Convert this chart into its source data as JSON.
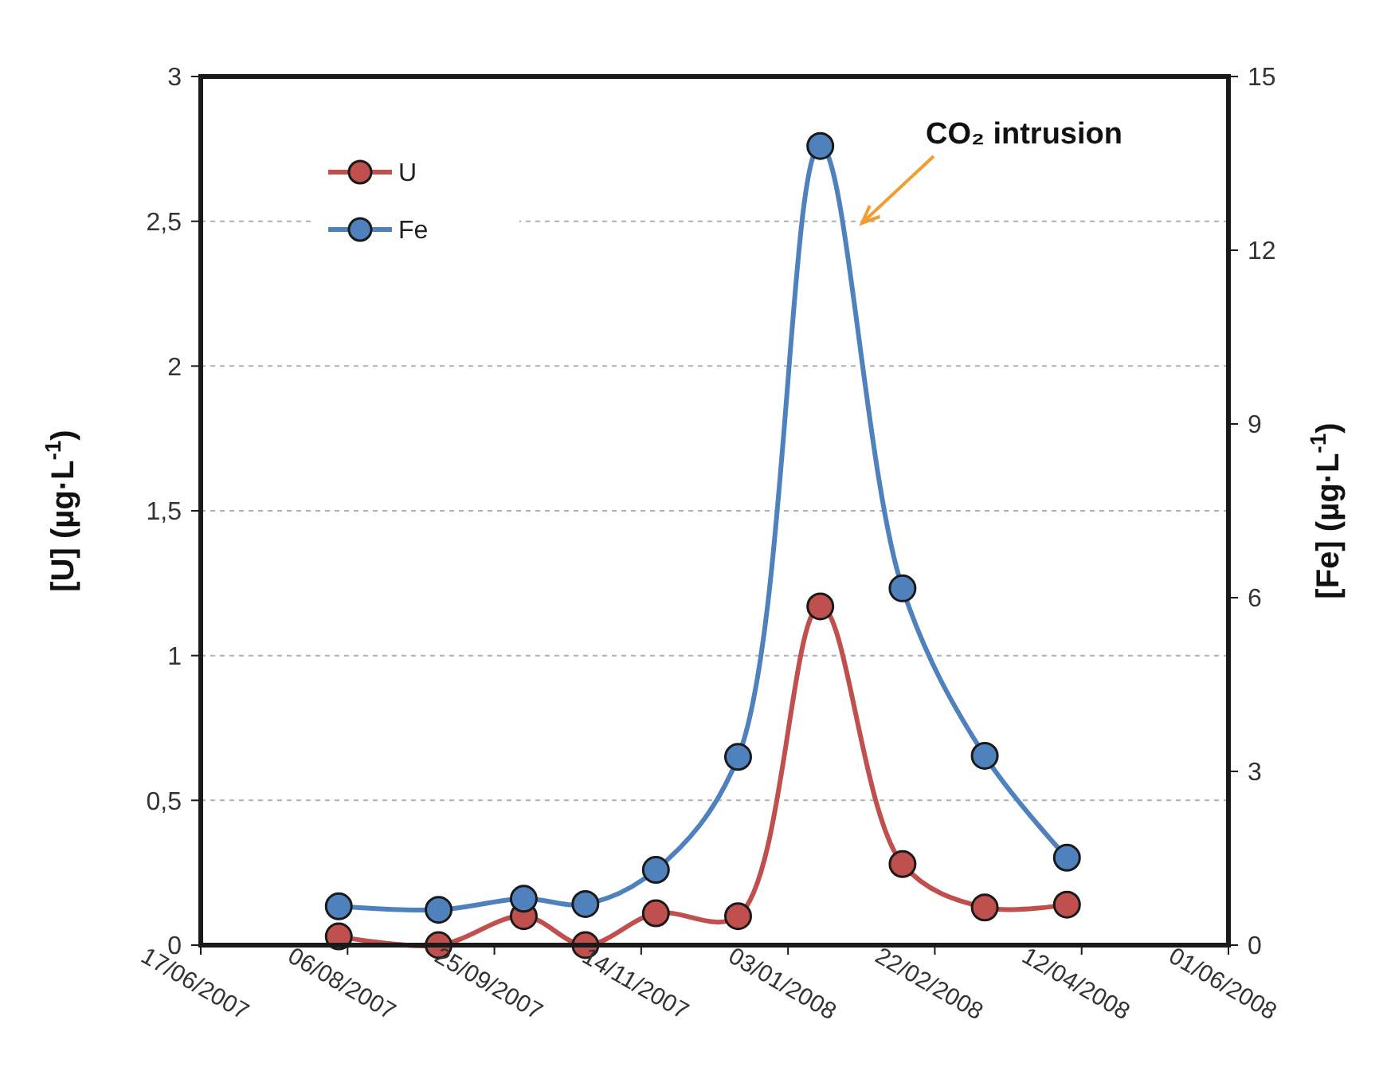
{
  "chart_data": {
    "type": "line",
    "ylabel": "[U] (µg·L$^{-1}$)",
    "y2label": "[Fe] (µg·L$^{-1}$)",
    "x": [
      "2007-08-03",
      "2007-09-06",
      "2007-10-05",
      "2007-10-26",
      "2007-11-19",
      "2007-12-17",
      "2008-01-14",
      "2008-02-11",
      "2008-03-10",
      "2008-04-07"
    ],
    "series": [
      {
        "name": "U",
        "color": "#c0504d",
        "values": [
          0.03,
          0,
          0.1,
          0,
          0.11,
          0.1,
          1.17,
          0.28,
          0.13,
          0.14
        ]
      },
      {
        "name": "Fe",
        "color": "#4f81bd",
        "axis": "y2",
        "values": [
          0.67,
          0.61,
          0.8,
          0.71,
          1.3,
          3.25,
          13.8,
          6.16,
          3.27,
          1.51
        ]
      }
    ],
    "xlim": [
      "2007-06-17",
      "2008-06-01"
    ],
    "xticks": [
      {
        "value": "2007-06-17",
        "label": "17/06/2007"
      },
      {
        "value": "2007-08-06",
        "label": "06/08/2007"
      },
      {
        "value": "2007-09-25",
        "label": "25/09/2007"
      },
      {
        "value": "2007-11-14",
        "label": "14/11/2007"
      },
      {
        "value": "2008-01-03",
        "label": "03/01/2008"
      },
      {
        "value": "2008-02-22",
        "label": "22/02/2008"
      },
      {
        "value": "2008-04-12",
        "label": "12/04/2008"
      },
      {
        "value": "2008-06-01",
        "label": "01/06/2008"
      }
    ],
    "ylim": [
      0,
      3
    ],
    "yticks": [
      0,
      {
        "value": 0.5,
        "label": "0,5"
      },
      1,
      {
        "value": 1.5,
        "label": "1,5"
      },
      2,
      {
        "value": 2.5,
        "label": "2,5"
      },
      3
    ],
    "y2lim": [
      0,
      15
    ],
    "y2ticks": [
      0,
      3,
      6,
      9,
      12,
      15
    ],
    "grid": "y",
    "legend": "top left",
    "marker": "circle",
    "line_style": "solid",
    "annotations": [
      "CO₂ intrusion"
    ]
  }
}
